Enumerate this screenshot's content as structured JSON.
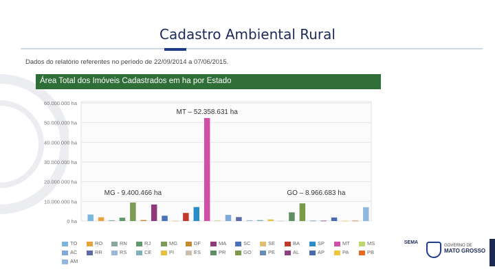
{
  "slide": {
    "title": "Cadastro Ambiental Rural",
    "period_note": "Dados do relatório referentes no período de 22/09/2014 a 07/06/2015.",
    "header_band": "Área Total dos Imóveis Cadastrados em ha por Estado"
  },
  "chart_data": {
    "type": "bar",
    "title": "",
    "xlabel": "",
    "ylabel": "",
    "ylim": [
      0,
      60000000
    ],
    "y_ticks": [
      "60.000.000 ha",
      "50.000.000 ha",
      "40.000.000 ha",
      "30.000.000 ha",
      "20.000.000 ha",
      "10.000.000 ha",
      "0 ha"
    ],
    "grid": true,
    "legend_position": "bottom",
    "categories": [
      "TO",
      "RO",
      "RN",
      "RJ",
      "MG",
      "DF",
      "MA",
      "SC",
      "SE",
      "BA",
      "SP",
      "MT",
      "MS",
      "AC",
      "RR",
      "RS",
      "CE",
      "PI",
      "ES",
      "PR",
      "GO",
      "PE",
      "AL",
      "AP",
      "PA",
      "PB",
      "AM"
    ],
    "colors": [
      "#7bb7dd",
      "#e8a33c",
      "#8aa8a0",
      "#5f9a6a",
      "#7d9b57",
      "#c58a2b",
      "#8e3a7a",
      "#4a72b8",
      "#e0c070",
      "#c0392b",
      "#2a8dc9",
      "#d24fa8",
      "#bcd86a",
      "#7ea9d8",
      "#5b6aa8",
      "#9ab8d8",
      "#7fb2b8",
      "#e8c040",
      "#c8c0a8",
      "#5e8e66",
      "#7a9a4a",
      "#6a8ab8",
      "#8e3f7e",
      "#4a6ab0",
      "#f2c340",
      "#e86a20",
      "#8fb8dc"
    ],
    "values": [
      3300000,
      1900000,
      400000,
      1700000,
      9400466,
      500000,
      8400000,
      2700000,
      100000,
      4100000,
      7100000,
      52358631,
      300000,
      3100000,
      2000000,
      400000,
      500000,
      800000,
      100000,
      4400000,
      8966683,
      200000,
      200000,
      1800000,
      100000,
      200000,
      7000000
    ],
    "annotations": [
      {
        "text": "MT – 52.358.631 ha",
        "category": "MT"
      },
      {
        "text": "MG - 9.400.466 ha",
        "category": "MG"
      },
      {
        "text": "GO – 8.966.683 ha",
        "category": "GO"
      }
    ]
  },
  "footer": {
    "logo_left": "SEMA",
    "logo_right_top": "GOVERNO DE",
    "logo_right": "MATO GROSSO"
  }
}
